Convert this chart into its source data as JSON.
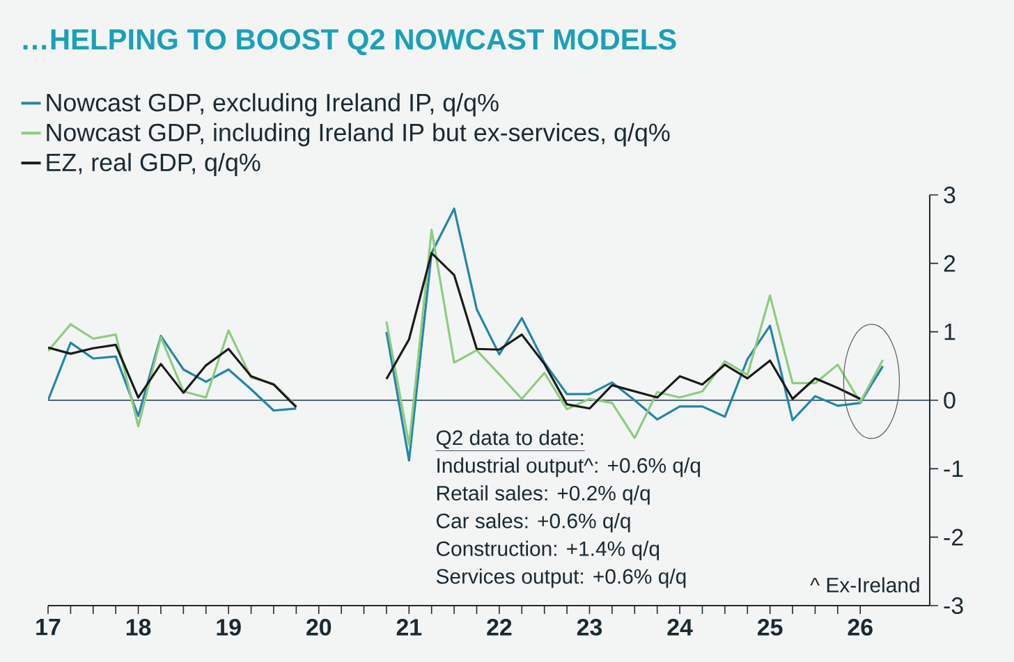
{
  "chart_data": {
    "type": "line",
    "title": "…HELPING TO BOOST Q2 NOWCAST MODELS",
    "x": [
      17,
      17.25,
      17.5,
      17.75,
      18,
      18.25,
      18.5,
      18.75,
      19,
      19.25,
      19.5,
      19.75,
      20,
      20.25,
      20.5,
      20.75,
      21,
      21.25,
      21.5,
      21.75,
      22,
      22.25,
      22.5,
      22.75,
      23,
      23.25,
      23.5,
      23.75,
      24,
      24.25,
      24.5,
      24.75,
      25,
      25.25,
      25.5,
      25.75,
      26,
      26.25
    ],
    "series": [
      {
        "name": "Nowcast GDP, excluding Ireland IP, q/q%",
        "color": "#2286a8",
        "values": [
          0.0,
          0.84,
          0.61,
          0.64,
          -0.23,
          0.94,
          0.45,
          0.27,
          0.45,
          0.16,
          -0.15,
          -0.12,
          null,
          null,
          null,
          1.0,
          -0.88,
          2.15,
          2.8,
          1.33,
          0.67,
          1.2,
          0.55,
          0.09,
          0.09,
          0.26,
          0.0,
          -0.28,
          -0.09,
          -0.09,
          -0.24,
          0.6,
          1.09,
          -0.29,
          0.06,
          -0.08,
          -0.04,
          0.5
        ]
      },
      {
        "name": "Nowcast GDP, including Ireland IP but ex-services, q/q%",
        "color": "#8ecb80",
        "values": [
          0.72,
          1.11,
          0.9,
          0.96,
          -0.38,
          0.92,
          0.13,
          0.04,
          1.02,
          0.33,
          0.24,
          -0.08,
          null,
          null,
          null,
          1.15,
          -0.65,
          2.49,
          0.55,
          0.73,
          0.38,
          0.02,
          0.4,
          -0.13,
          0.02,
          -0.04,
          -0.55,
          0.12,
          0.04,
          0.13,
          0.57,
          0.37,
          1.53,
          0.25,
          0.25,
          0.52,
          -0.03,
          0.59
        ]
      },
      {
        "name": "EZ, real GDP, q/q%",
        "color": "#1a1a1a",
        "values": [
          0.77,
          0.68,
          0.76,
          0.81,
          0.04,
          0.53,
          0.11,
          0.51,
          0.75,
          0.35,
          0.23,
          -0.1,
          null,
          null,
          null,
          0.31,
          0.89,
          2.15,
          1.83,
          0.75,
          0.74,
          0.96,
          0.53,
          -0.06,
          -0.12,
          0.22,
          0.13,
          0.04,
          0.35,
          0.23,
          0.52,
          0.32,
          0.58,
          0.02,
          0.32,
          0.18,
          0.02,
          null
        ]
      }
    ],
    "xlim": [
      17,
      26.77
    ],
    "xticks": [
      17,
      18,
      19,
      20,
      21,
      22,
      23,
      24,
      25,
      26
    ],
    "ylim": [
      -3,
      3
    ],
    "yticks": [
      -3,
      -2,
      -1,
      0,
      1,
      2,
      3
    ],
    "ref_lines": [
      {
        "axis": "y",
        "value": 0,
        "color": "#1f3344"
      }
    ],
    "legend": "top left",
    "annotations": [
      "Q2 data to date:",
      "Industrial output^: +0.6% q/q",
      "Retail sales: +0.2% q/q",
      "Car sales:  +0.6% q/q",
      "Construction: +1.4% q/q",
      "Services output: +0.6% q/q",
      "^ Ex-Ireland"
    ]
  }
}
